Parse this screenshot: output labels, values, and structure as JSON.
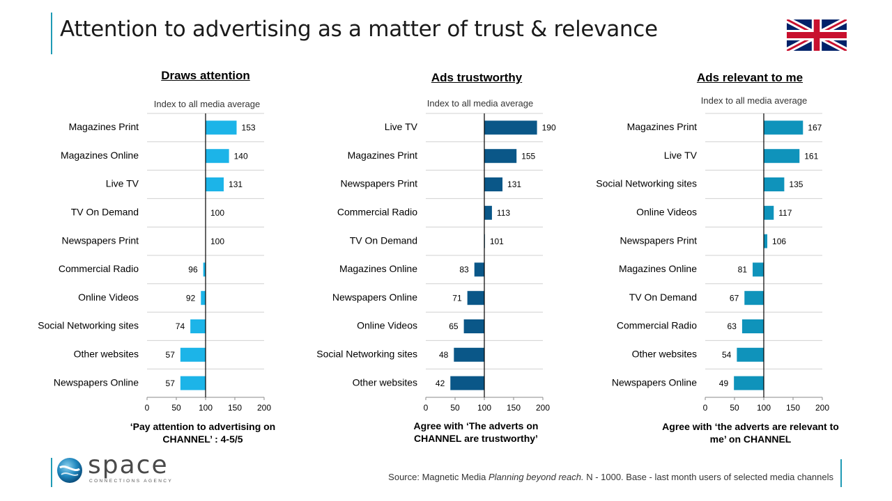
{
  "title": "Attention to advertising as a matter of trust & relevance",
  "logo": {
    "word": "space",
    "tagline": "CONNECTIONS AGENCY"
  },
  "source": {
    "prefix": "Source: Magnetic Media ",
    "italic": "Planning beyond reach.",
    "suffix": " N - 1000. Base - last month users of selected media channels"
  },
  "colors": {
    "accent": "#1f9bb5",
    "series1": "#1cb4e8",
    "series2": "#0a5788",
    "series3": "#0f93bb"
  },
  "chart_data": [
    {
      "type": "bar",
      "orientation": "horizontal",
      "title": "Draws attention",
      "subtitle": "Index to all media average",
      "footnote": "‘Pay attention to advertising on CHANNEL’ : 4-5/5",
      "baseline": 100,
      "xlim": [
        0,
        200
      ],
      "ticks": [
        0,
        50,
        100,
        150,
        200
      ],
      "categories": [
        "Magazines Print",
        "Magazines Online",
        "Live TV",
        "TV On Demand",
        "Newspapers Print",
        "Commercial Radio",
        "Online Videos",
        "Social Networking sites",
        "Other websites",
        "Newspapers Online"
      ],
      "values": [
        153,
        140,
        131,
        100,
        100,
        96,
        92,
        74,
        57,
        57
      ],
      "color": "#1cb4e8"
    },
    {
      "type": "bar",
      "orientation": "horizontal",
      "title": "Ads trustworthy",
      "subtitle": "Index to all media average",
      "footnote": "Agree with ‘The adverts on CHANNEL are trustworthy’",
      "baseline": 100,
      "xlim": [
        0,
        200
      ],
      "ticks": [
        0,
        50,
        100,
        150,
        200
      ],
      "categories": [
        "Live TV",
        "Magazines Print",
        "Newspapers Print",
        "Commercial Radio",
        "TV On Demand",
        "Magazines Online",
        "Newspapers Online",
        "Online Videos",
        "Social Networking sites",
        "Other websites"
      ],
      "values": [
        190,
        155,
        131,
        113,
        101,
        83,
        71,
        65,
        48,
        42
      ],
      "color": "#0a5788"
    },
    {
      "type": "bar",
      "orientation": "horizontal",
      "title": "Ads relevant to me",
      "subtitle": "Index to all media average",
      "footnote": "Agree with ‘the adverts are relevant to me’ on CHANNEL",
      "baseline": 100,
      "xlim": [
        0,
        200
      ],
      "ticks": [
        0,
        50,
        100,
        150,
        200
      ],
      "categories": [
        "Magazines Print",
        "Live TV",
        "Social Networking sites",
        "Online Videos",
        "Newspapers Print",
        "Magazines Online",
        "TV On Demand",
        "Commercial Radio",
        "Other websites",
        "Newspapers Online"
      ],
      "values": [
        167,
        161,
        135,
        117,
        106,
        81,
        67,
        63,
        54,
        49
      ],
      "color": "#0f93bb"
    }
  ]
}
